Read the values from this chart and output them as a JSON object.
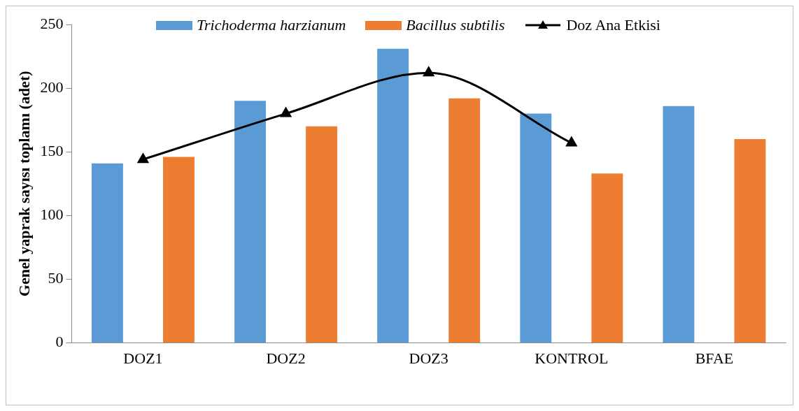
{
  "chart_data": {
    "type": "bar",
    "ylabel": "Genel yaprak sayısı toplamı (adet)",
    "categories": [
      "DOZ1",
      "DOZ2",
      "DOZ3",
      "KONTROL",
      "BFAE"
    ],
    "series": [
      {
        "name": "Trichoderma harzianum",
        "color": "#5b9bd5",
        "values": [
          141,
          190,
          231,
          180,
          186
        ]
      },
      {
        "name": "Bacillus subtilis",
        "color": "#ed7d31",
        "values": [
          146,
          170,
          192,
          133,
          160
        ]
      },
      {
        "name": "Doz Ana Etkisi",
        "type": "line",
        "color": "#000000",
        "marker": "triangle",
        "values": [
          144,
          180,
          212,
          157,
          null
        ]
      }
    ],
    "ylim": [
      0,
      250
    ],
    "yticks": [
      0,
      50,
      100,
      150,
      200,
      250
    ],
    "grid": false,
    "legend": "top"
  }
}
